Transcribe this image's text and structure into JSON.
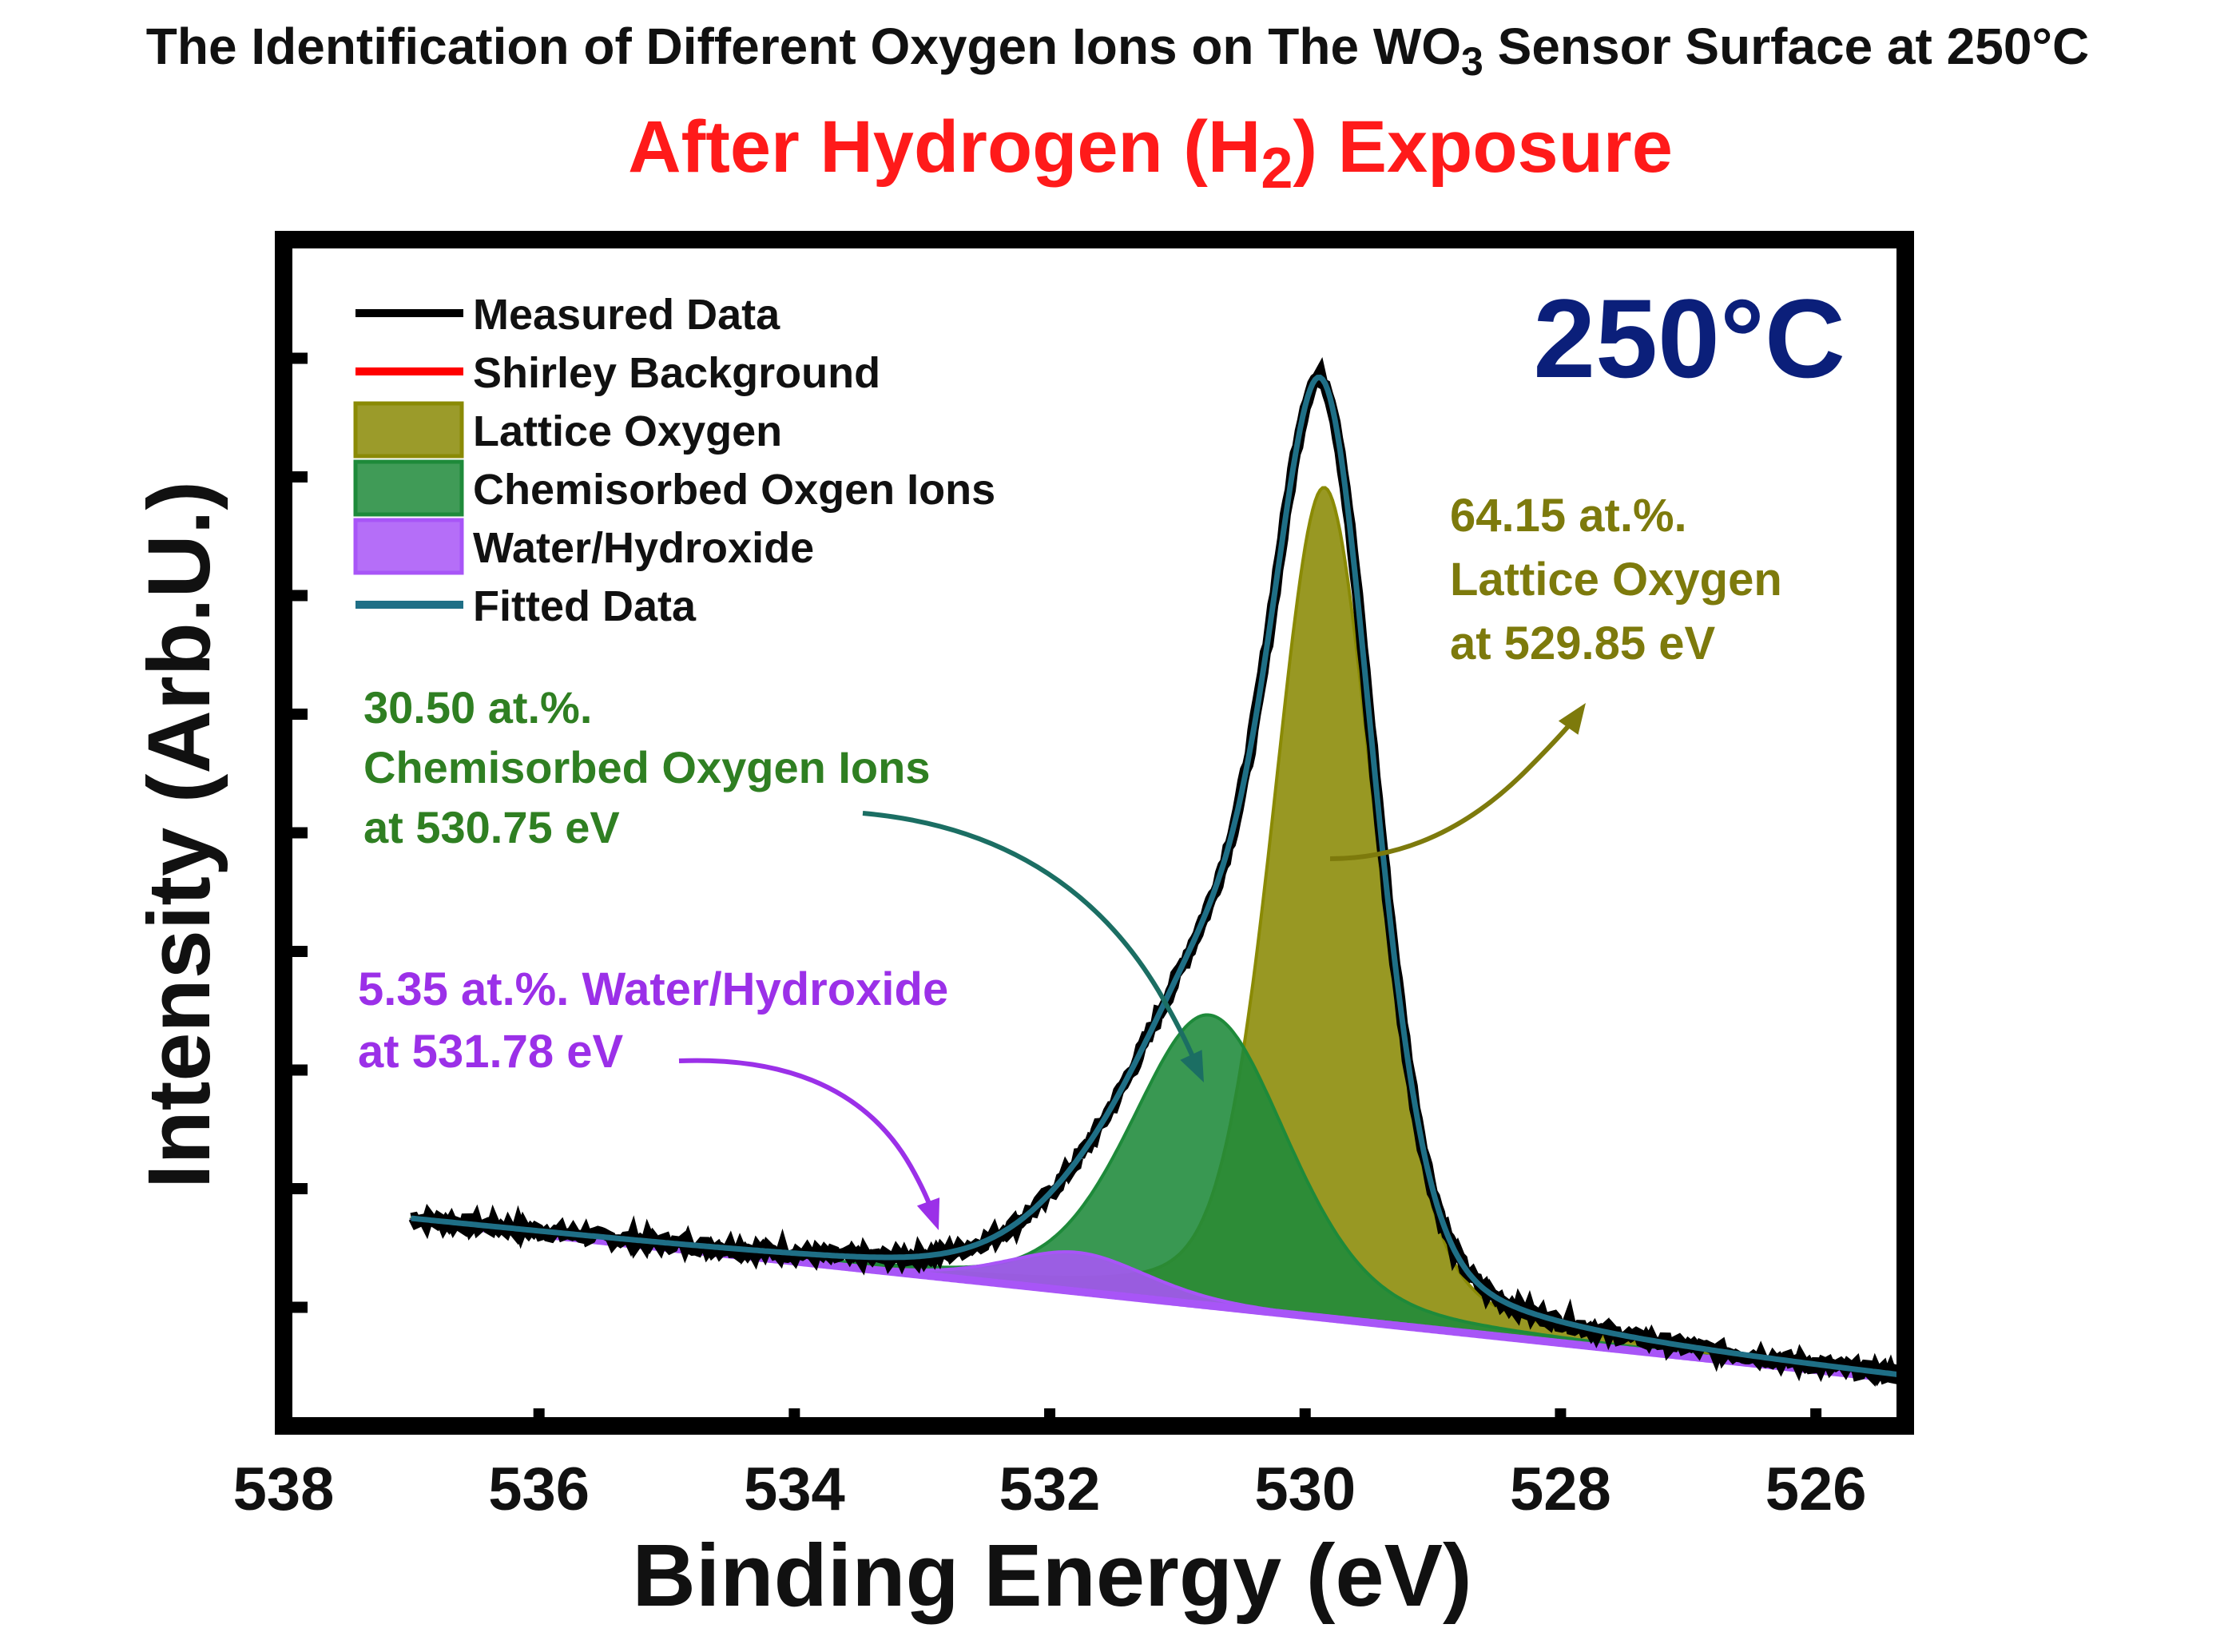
{
  "chart_data": {
    "type": "line",
    "title": {
      "pre": "The Identification of Different Oxygen Ions on The WO",
      "sub": "3",
      "post": " Sensor Surface at 250°C"
    },
    "subtitle": {
      "pre": "After Hydrogen (H",
      "sub": "2",
      "post": ") Exposure"
    },
    "xlabel": "Binding Energy (eV)",
    "ylabel": "Intensity (Arb.U.)",
    "xlim": [
      538,
      525.3
    ],
    "ylim": [
      0,
      100
    ],
    "x_reversed": true,
    "xticks": [
      538,
      536,
      534,
      532,
      530,
      528,
      526
    ],
    "x_tick_labels": [
      "538",
      "536",
      "534",
      "532",
      "530",
      "528",
      "526"
    ],
    "yticks_minor": [
      10,
      20,
      30,
      40,
      50,
      60,
      70,
      80,
      90
    ],
    "y_tick_labels_shown": false,
    "temperature_label": "250°C",
    "legend_position": "top-left",
    "legend": [
      {
        "label": "Measured Data",
        "kind": "line",
        "color": "#000000"
      },
      {
        "label": "Shirley Background",
        "kind": "line",
        "color": "#ff0000"
      },
      {
        "label": "Lattice Oxygen",
        "kind": "box",
        "color": "#8a8a05"
      },
      {
        "label": "Chemisorbed Oxgen Ions",
        "kind": "box",
        "color": "#1e8a3a"
      },
      {
        "label": "Water/Hydroxide",
        "kind": "box",
        "color": "#a855f7"
      },
      {
        "label": "Fitted Data",
        "kind": "line",
        "color": "#1f6f86"
      }
    ],
    "colors": {
      "measured": "#000000",
      "background": "#ff0000",
      "lattice": "#8a8a05",
      "chemisorbed": "#1e8a3a",
      "water": "#a855f7",
      "fitted": "#1f6f86",
      "temperature": "#0b1f7a",
      "lattice_text": "#7d7a0c",
      "chem_text": "#2f7f22",
      "water_text": "#9b30e8",
      "subtitle": "#ff1a1a"
    },
    "baseline": {
      "x_start": 537.0,
      "y_start": 17.3,
      "x_end": 525.3,
      "y_end": 3.9
    },
    "series": [
      {
        "name": "Lattice Oxygen",
        "center": 529.85,
        "amplitude": 70.0,
        "fwhm": 0.95
      },
      {
        "name": "Chemisorbed Oxgen Ions",
        "center": 530.75,
        "amplitude": 24.5,
        "fwhm": 1.45
      },
      {
        "name": "Water/Hydroxide",
        "center": 531.78,
        "amplitude": 3.3,
        "fwhm": 1.3
      }
    ],
    "x_range": [
      537.0,
      525.3
    ],
    "annotations": [
      {
        "name": "lattice",
        "lines": [
          "64.15 at.%.",
          "Lattice Oxygen",
          "at 529.85 eV"
        ],
        "percent": 64.15,
        "energy": 529.85
      },
      {
        "name": "chemisorbed",
        "lines": [
          "30.50 at.%.",
          "Chemisorbed Oxygen Ions",
          "at 530.75 eV"
        ],
        "percent": 30.5,
        "energy": 530.75
      },
      {
        "name": "water",
        "lines": [
          "5.35 at.%. Water/Hydroxide",
          "at 531.78 eV"
        ],
        "percent": 5.35,
        "energy": 531.78
      }
    ]
  }
}
